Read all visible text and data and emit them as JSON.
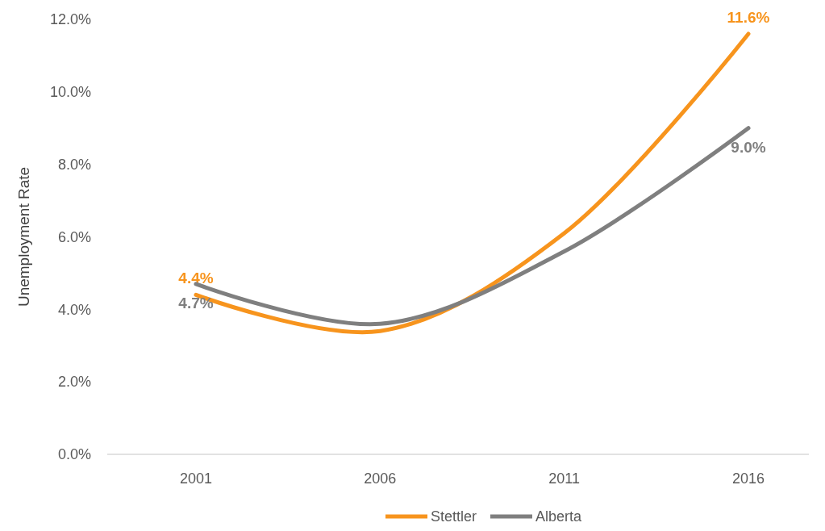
{
  "chart_data": {
    "type": "line",
    "ylabel": "Unemployment Rate",
    "categories": [
      "2001",
      "2006",
      "2011",
      "2016"
    ],
    "series": [
      {
        "name": "Stettler",
        "color": "#f7941d",
        "values": [
          4.4,
          3.4,
          6.1,
          11.6
        ],
        "value_labels": [
          "4.4%",
          null,
          null,
          "11.6%"
        ]
      },
      {
        "name": "Alberta",
        "color": "#7f7f7f",
        "values": [
          4.7,
          3.6,
          5.6,
          9.0
        ],
        "value_labels": [
          "4.7%",
          null,
          null,
          "9.0%"
        ]
      }
    ],
    "ylim": [
      0,
      12
    ],
    "yticks": [
      {
        "value": 0,
        "label": "0.0%"
      },
      {
        "value": 2,
        "label": "2.0%"
      },
      {
        "value": 4,
        "label": "4.0%"
      },
      {
        "value": 6,
        "label": "6.0%"
      },
      {
        "value": 8,
        "label": "8.0%"
      },
      {
        "value": 10,
        "label": "10.0%"
      },
      {
        "value": 12,
        "label": "12.0%"
      }
    ],
    "legend": "bottom",
    "line_style": "solid",
    "marker": "none"
  }
}
